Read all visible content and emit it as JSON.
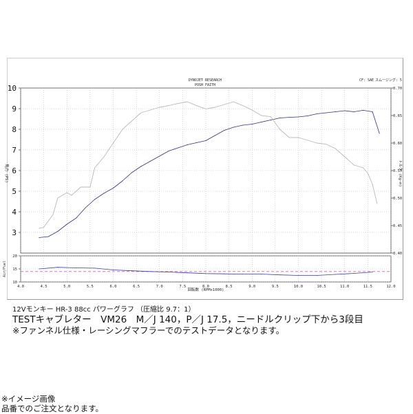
{
  "header": {
    "title": "DYNOJET RESEARCH",
    "subtitle": "POSH FAITH",
    "correction": "CF: SAE",
    "smoothing": "スムージング: 5"
  },
  "chart_data": {
    "type": "line",
    "xlabel": "回転数 (RPMx1000)",
    "ylabel_left": "馬力 (PS)",
    "ylabel_right": "トルク (Kg-m)",
    "ylabel_af": "Air/Fuel",
    "xlim": [
      4.0,
      12.0
    ],
    "xticks": [
      "4.0",
      "4.5",
      "5.0",
      "5.5",
      "6.0",
      "6.5",
      "7.0",
      "7.5",
      "8.0",
      "8.5",
      "9.0",
      "9.5",
      "10.0",
      "10.5",
      "11.0",
      "11.5",
      "12.0"
    ],
    "ylim_left": [
      2.0,
      10.0
    ],
    "yticks_left": [
      "3",
      "4",
      "5",
      "6",
      "7",
      "8",
      "9",
      "10"
    ],
    "ylim_right": [
      0.4,
      0.7
    ],
    "yticks_right": [
      "0.40",
      "0.45",
      "0.50",
      "0.55",
      "0.60",
      "0.65",
      "0.70"
    ],
    "af_ylim": [
      10,
      20
    ],
    "af_yticks": [
      "10",
      "15",
      "20"
    ],
    "series": [
      {
        "key": "power",
        "axis": "left",
        "color": "#2a2f8c",
        "x": [
          4.4,
          4.6,
          4.8,
          5.0,
          5.2,
          5.4,
          5.6,
          5.8,
          6.0,
          6.2,
          6.4,
          6.6,
          6.8,
          7.0,
          7.2,
          7.4,
          7.6,
          7.8,
          8.0,
          8.2,
          8.4,
          8.6,
          8.8,
          9.0,
          9.2,
          9.4,
          9.6,
          9.8,
          10.0,
          10.2,
          10.4,
          10.6,
          10.8,
          11.0,
          11.2,
          11.4,
          11.6,
          11.75
        ],
        "y": [
          2.75,
          2.8,
          3.05,
          3.4,
          3.7,
          4.2,
          4.6,
          4.9,
          5.15,
          5.5,
          5.9,
          6.2,
          6.45,
          6.7,
          6.95,
          7.1,
          7.25,
          7.35,
          7.45,
          7.7,
          7.95,
          8.1,
          8.2,
          8.25,
          8.35,
          8.45,
          8.55,
          8.58,
          8.6,
          8.65,
          8.75,
          8.8,
          8.85,
          8.9,
          8.85,
          8.92,
          8.85,
          7.8
        ]
      },
      {
        "key": "torque",
        "axis": "right",
        "color": "#b8b8b8",
        "x": [
          4.4,
          4.5,
          4.7,
          4.8,
          5.0,
          5.1,
          5.3,
          5.5,
          5.6,
          5.8,
          6.0,
          6.2,
          6.4,
          6.6,
          6.8,
          7.0,
          7.2,
          7.4,
          7.6,
          7.8,
          8.0,
          8.2,
          8.4,
          8.6,
          8.8,
          9.0,
          9.2,
          9.4,
          9.6,
          9.8,
          10.0,
          10.2,
          10.4,
          10.6,
          10.8,
          11.0,
          11.2,
          11.4,
          11.5,
          11.6,
          11.7
        ],
        "y": [
          0.445,
          0.447,
          0.47,
          0.5,
          0.51,
          0.505,
          0.52,
          0.52,
          0.555,
          0.575,
          0.6,
          0.625,
          0.64,
          0.655,
          0.66,
          0.665,
          0.668,
          0.672,
          0.675,
          0.668,
          0.662,
          0.665,
          0.67,
          0.675,
          0.668,
          0.66,
          0.65,
          0.648,
          0.625,
          0.61,
          0.61,
          0.605,
          0.6,
          0.598,
          0.59,
          0.575,
          0.56,
          0.555,
          0.545,
          0.525,
          0.49
        ]
      },
      {
        "key": "af",
        "axis": "af",
        "color": "#3a3ab8",
        "x": [
          4.4,
          4.8,
          5.2,
          5.6,
          6.0,
          6.4,
          6.8,
          7.2,
          7.6,
          8.0,
          8.4,
          8.8,
          9.2,
          9.6,
          10.0,
          10.4,
          10.8,
          11.2,
          11.6
        ],
        "y": [
          15.0,
          15.6,
          15.4,
          15.3,
          14.6,
          14.3,
          14.0,
          13.8,
          13.5,
          13.2,
          13.1,
          13.0,
          13.0,
          12.7,
          12.5,
          12.5,
          12.9,
          13.3,
          13.8
        ]
      }
    ],
    "af_reference": 14.0
  },
  "captions": {
    "sub": "12Vモンキー HR-3 88cc パワーグラフ （圧縮比 9.7：1）",
    "test": "TESTキャブレター　VM26　M／J 140，P／J 17.5，ニードルクリップ下から3段目",
    "note": "※ファンネル仕様・レーシングマフラーでのテストデータとなります。"
  },
  "footer": {
    "line1": "※イメージ画像",
    "line2": "品番でのご注文となります。"
  }
}
